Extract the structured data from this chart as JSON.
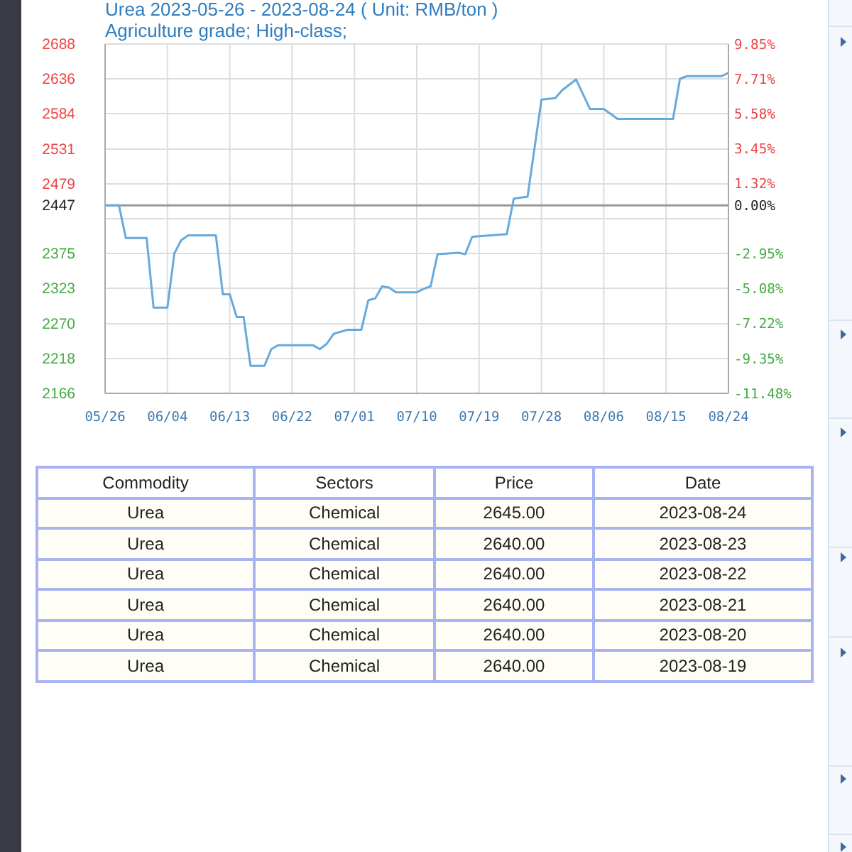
{
  "chart_data": [
    {
      "type": "line",
      "title": "Urea 2023-05-26 - 2023-08-24 ( Unit: RMB/ton )",
      "subtitle": "Agriculture grade; High-class;",
      "x": [
        "2023-05-26",
        "2023-05-28",
        "2023-05-29",
        "2023-06-01",
        "2023-06-02",
        "2023-06-04",
        "2023-06-05",
        "2023-06-06",
        "2023-06-07",
        "2023-06-11",
        "2023-06-12",
        "2023-06-13",
        "2023-06-14",
        "2023-06-15",
        "2023-06-16",
        "2023-06-18",
        "2023-06-19",
        "2023-06-20",
        "2023-06-25",
        "2023-06-26",
        "2023-06-27",
        "2023-06-28",
        "2023-06-30",
        "2023-07-02",
        "2023-07-03",
        "2023-07-04",
        "2023-07-05",
        "2023-07-06",
        "2023-07-07",
        "2023-07-10",
        "2023-07-11",
        "2023-07-12",
        "2023-07-13",
        "2023-07-16",
        "2023-07-17",
        "2023-07-18",
        "2023-07-23",
        "2023-07-24",
        "2023-07-26",
        "2023-07-28",
        "2023-07-30",
        "2023-07-31",
        "2023-08-02",
        "2023-08-04",
        "2023-08-06",
        "2023-08-08",
        "2023-08-16",
        "2023-08-17",
        "2023-08-18",
        "2023-08-19",
        "2023-08-20",
        "2023-08-21",
        "2023-08-22",
        "2023-08-23",
        "2023-08-24"
      ],
      "values": [
        2447,
        2447,
        2398,
        2398,
        2294,
        2294,
        2375,
        2395,
        2402,
        2402,
        2314,
        2314,
        2280,
        2280,
        2207,
        2207,
        2232,
        2238,
        2238,
        2232,
        2240,
        2255,
        2261,
        2261,
        2305,
        2308,
        2326,
        2324,
        2317,
        2317,
        2322,
        2326,
        2374,
        2376,
        2374,
        2400,
        2404,
        2457,
        2460,
        2605,
        2607,
        2619,
        2635,
        2591,
        2591,
        2576,
        2576,
        2636,
        2640,
        2640,
        2640,
        2640,
        2640,
        2640,
        2645
      ],
      "color": "#66aadd",
      "marker": "none",
      "line_style": "solid",
      "grid": true,
      "xlim": [
        "2023-05-26",
        "2023-08-24"
      ],
      "xticks": [
        {
          "value": "2023-05-26",
          "label": "05/26"
        },
        {
          "value": "2023-06-04",
          "label": "06/04"
        },
        {
          "value": "2023-06-13",
          "label": "06/13"
        },
        {
          "value": "2023-06-22",
          "label": "06/22"
        },
        {
          "value": "2023-07-01",
          "label": "07/01"
        },
        {
          "value": "2023-07-10",
          "label": "07/10"
        },
        {
          "value": "2023-07-19",
          "label": "07/19"
        },
        {
          "value": "2023-07-28",
          "label": "07/28"
        },
        {
          "value": "2023-08-06",
          "label": "08/06"
        },
        {
          "value": "2023-08-15",
          "label": "08/15"
        },
        {
          "value": "2023-08-24",
          "label": "08/24"
        }
      ],
      "ylim": [
        2166,
        2688
      ],
      "yticks": [
        2166,
        2218,
        2270,
        2323,
        2375,
        {
          "value": 2427,
          "label": null
        },
        2447,
        2479,
        2531,
        2584,
        2636,
        2688
      ],
      "y2lim": [
        -11.48,
        9.85
      ],
      "y2ticks": [
        {
          "value": -11.48,
          "label": "-11.48%"
        },
        {
          "value": -9.35,
          "label": "-9.35%"
        },
        {
          "value": -7.22,
          "label": "-7.22%"
        },
        {
          "value": -5.08,
          "label": "-5.08%"
        },
        {
          "value": -2.95,
          "label": "-2.95%"
        },
        {
          "value": 0,
          "label": "0.00%"
        },
        {
          "value": 1.32,
          "label": "1.32%"
        },
        {
          "value": 3.45,
          "label": "3.45%"
        },
        {
          "value": 5.58,
          "label": "5.58%"
        },
        {
          "value": 7.71,
          "label": "7.71%"
        },
        {
          "value": 9.85,
          "label": "9.85%"
        }
      ],
      "ref_lines": [
        {
          "axis": "y",
          "value": 2447,
          "color": "#999999"
        }
      ]
    },
    {
      "type": "other",
      "categories": [
        "Commodity",
        "Sectors",
        "Price",
        "Date"
      ],
      "annotations": [
        "Urea",
        "Chemical",
        "2645.00",
        "2023-08-24",
        "Urea",
        "Chemical",
        "2640.00",
        "2023-08-23",
        "Urea",
        "Chemical",
        "2640.00",
        "2023-08-22",
        "Urea",
        "Chemical",
        "2640.00",
        "2023-08-21",
        "Urea",
        "Chemical",
        "2640.00",
        "2023-08-20",
        "Urea",
        "Chemical",
        "2640.00",
        "2023-08-19"
      ]
    }
  ]
}
